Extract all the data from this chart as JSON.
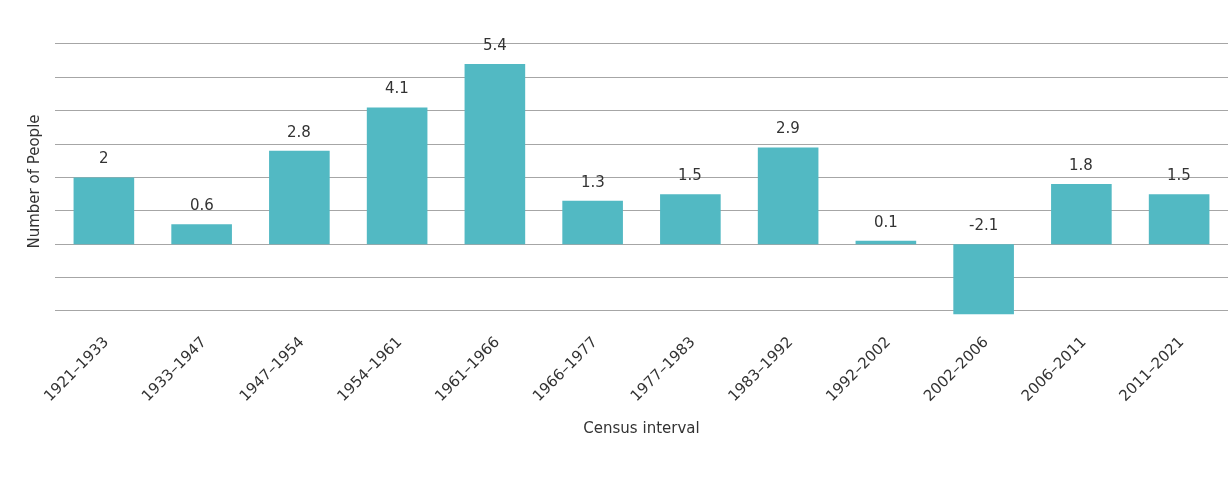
{
  "chart_data": {
    "type": "bar",
    "xlabel": "Census interval",
    "ylabel": "Number of People",
    "categories": [
      "1921–1933",
      "1933–1947",
      "1947–1954",
      "1954–1961",
      "1961–1966",
      "1966–1977",
      "1977–1983",
      "1983–1992",
      "1992–2002",
      "2002–2006",
      "2006–2011",
      "2011–2021"
    ],
    "values": [
      2,
      0.6,
      2.8,
      4.1,
      5.4,
      1.3,
      1.5,
      2.9,
      0.1,
      -2.1,
      1.8,
      1.5
    ],
    "color": "#52b9c3",
    "data_labels": true,
    "grid": "y",
    "tick_labels": "x"
  }
}
